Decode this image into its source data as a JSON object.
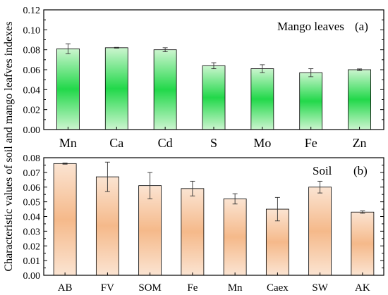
{
  "ylabel": "Characteristic values of soil and mango leafves indexes",
  "chart_data": [
    {
      "type": "bar",
      "panel_label": "(a)",
      "legend_text": "Mango leaves",
      "categories": [
        "Mn",
        "Ca",
        "Cd",
        "S",
        "Mo",
        "Fe",
        "Zn"
      ],
      "values": [
        0.081,
        0.082,
        0.08,
        0.064,
        0.061,
        0.057,
        0.06
      ],
      "errors": [
        0.005,
        0.0004,
        0.002,
        0.003,
        0.004,
        0.004,
        0.0008
      ],
      "ylim": [
        0,
        0.12
      ],
      "yticks": [
        "0.00",
        "0.02",
        "0.04",
        "0.06",
        "0.08",
        "0.10",
        "0.12"
      ],
      "bar_color_top": "#ccf5cf",
      "bar_color_bottom": "#22d84a",
      "grid": false
    },
    {
      "type": "bar",
      "panel_label": "(b)",
      "legend_text": "Soil",
      "categories": [
        "AB",
        "FV",
        "SOM",
        "Fe",
        "Mn",
        "Caex",
        "SW",
        "AK"
      ],
      "values": [
        0.076,
        0.067,
        0.061,
        0.059,
        0.052,
        0.045,
        0.06,
        0.043
      ],
      "errors": [
        0.0004,
        0.01,
        0.009,
        0.005,
        0.0035,
        0.008,
        0.004,
        0.0008
      ],
      "ylim": [
        0,
        0.08
      ],
      "yticks": [
        "0.00",
        "0.01",
        "0.02",
        "0.03",
        "0.04",
        "0.05",
        "0.06",
        "0.07",
        "0.08"
      ],
      "bar_color_top": "#fbe4d2",
      "bar_color_bottom": "#f5b98a",
      "grid": false
    }
  ]
}
